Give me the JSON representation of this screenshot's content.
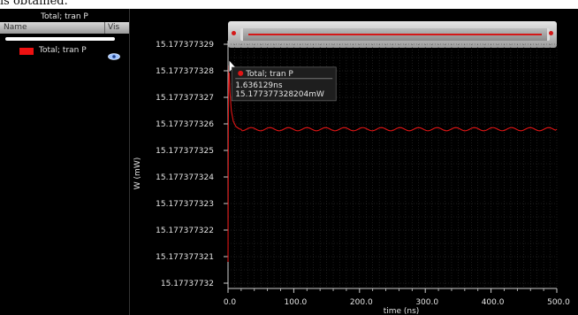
{
  "caption_fragment": "is obtained.",
  "panel": {
    "title": "Total; tran P",
    "col_name": "Name",
    "col_vis": "Vis",
    "legend_label": "Total; tran P",
    "legend_color": "#ee1111",
    "eye_icon": "eye-icon"
  },
  "tooltip": {
    "series": "Total; tran P",
    "x_text": "1.636129ns",
    "y_text": "15.177377328204mW"
  },
  "chart_data": {
    "type": "line",
    "title": "",
    "xlabel": "time (ns)",
    "ylabel": "W (mW)",
    "xlim": [
      0,
      500
    ],
    "ylim": [
      15.1773773198,
      15.177377329
    ],
    "x_ticks": [
      0,
      100,
      200,
      300,
      400,
      500
    ],
    "x_tick_labels": [
      "0.0",
      "100.0",
      "200.0",
      "300.0",
      "400.0",
      "500.0"
    ],
    "y_ticks": [
      15.177377329,
      15.177377328,
      15.177377327,
      15.177377326,
      15.177377325,
      15.177377324,
      15.177377323,
      15.177377322,
      15.177377321,
      15.17737732
    ],
    "y_tick_labels": [
      "15.177377329",
      "15.177377328",
      "15.177377327",
      "15.177377326",
      "15.177377325",
      "15.177377324",
      "15.177377323",
      "15.177377322",
      "15.177377321",
      "15.17737732"
    ],
    "grid": true,
    "series": [
      {
        "name": "Total; tran P",
        "color": "#e01515",
        "x": [
          0,
          0.5,
          1.0,
          1.636129,
          3,
          5,
          8,
          12,
          18,
          25,
          50,
          75,
          100,
          150,
          200,
          250,
          300,
          350,
          400,
          450,
          500
        ],
        "y": [
          15.1773773208,
          15.177377326,
          15.1773773275,
          15.177377328204,
          15.1773773272,
          15.1773773265,
          15.1773773261,
          15.1773773259,
          15.1773773258,
          15.1773773258,
          15.1773773258,
          15.1773773258,
          15.1773773258,
          15.1773773258,
          15.1773773258,
          15.1773773258,
          15.1773773258,
          15.1773773258,
          15.1773773258,
          15.1773773258,
          15.1773773258
        ]
      }
    ]
  }
}
